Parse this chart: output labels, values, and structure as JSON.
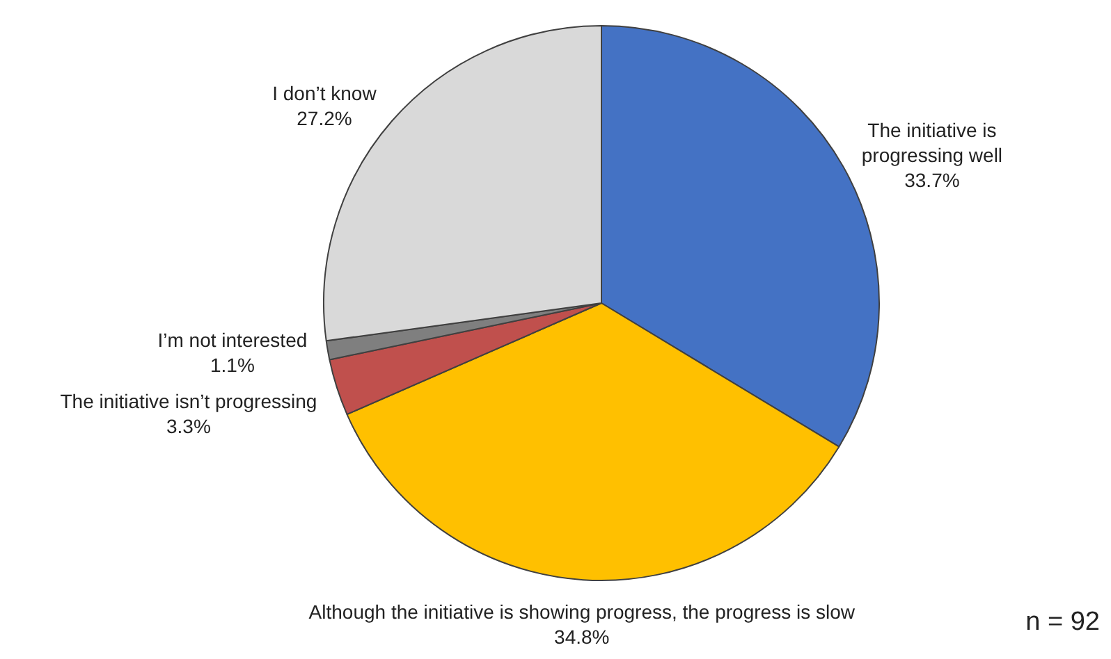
{
  "chart_data": {
    "type": "pie",
    "categories": [
      "The initiative is\nprogressing well",
      "Although the initiative is showing progress, the progress is slow",
      "The initiative isn’t progressing",
      "I’m not interested",
      "I don’t know"
    ],
    "values": [
      33.7,
      34.8,
      3.3,
      1.1,
      27.2
    ],
    "colors": [
      "#4472c4",
      "#ffc000",
      "#c0504d",
      "#7f7f7f",
      "#d9d9d9"
    ],
    "value_labels": [
      "33.7%",
      "34.8%",
      "3.3%",
      "1.1%",
      "27.2%"
    ],
    "legend": false,
    "annotations": [
      "n = 92"
    ]
  }
}
